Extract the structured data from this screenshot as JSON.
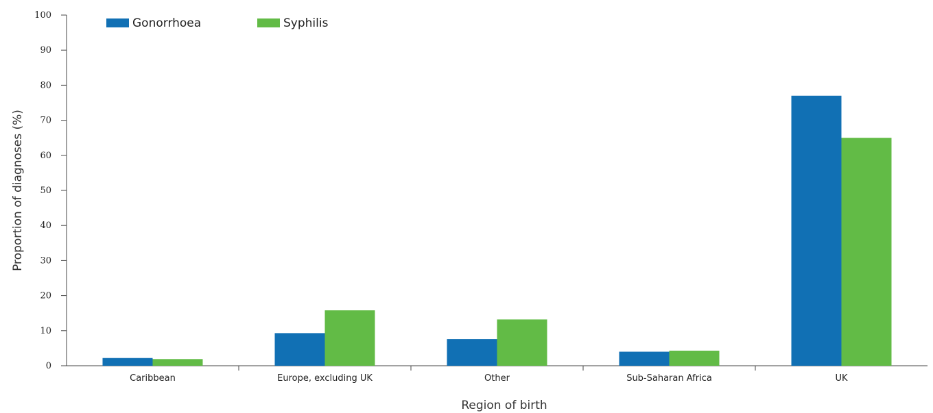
{
  "chart_data": {
    "type": "bar",
    "categories": [
      "Caribbean",
      "Europe, excluding UK",
      "Other",
      "Sub-Saharan Africa",
      "UK"
    ],
    "series": [
      {
        "name": "Gonorrhoea",
        "color": "#1170b4",
        "values": [
          2.2,
          9.3,
          7.6,
          4.0,
          77.0
        ]
      },
      {
        "name": "Syphilis",
        "color": "#62bb46",
        "values": [
          1.9,
          15.8,
          13.2,
          4.3,
          65.0
        ]
      }
    ],
    "xlabel": "Region of birth",
    "ylabel": "Proportion of diagnoses (%)",
    "ylim": [
      0,
      100
    ],
    "yticks": [
      0,
      10,
      20,
      30,
      40,
      50,
      60,
      70,
      80,
      90,
      100
    ],
    "grid": false,
    "legend_position": "top-left"
  }
}
